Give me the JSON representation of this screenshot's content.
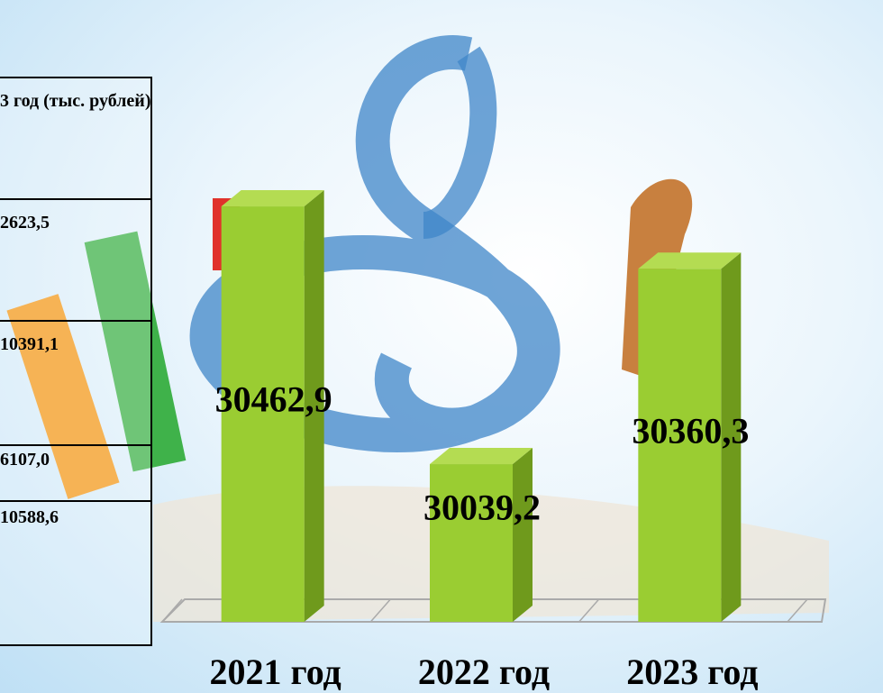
{
  "table": {
    "header": "3 год (тыс. рублей)",
    "rows": [
      "2623,5",
      "10391,1",
      "6107,0",
      "10588,6"
    ]
  },
  "chart_data": {
    "type": "bar",
    "categories": [
      "2021 год",
      "2022 год",
      "2023 год"
    ],
    "values": [
      30462.9,
      30039.2,
      30360.3
    ],
    "value_labels": [
      "30462,9",
      "30039,2",
      "30360,3"
    ],
    "color": "#9acd32",
    "ylim": [
      29780,
      30580
    ]
  }
}
